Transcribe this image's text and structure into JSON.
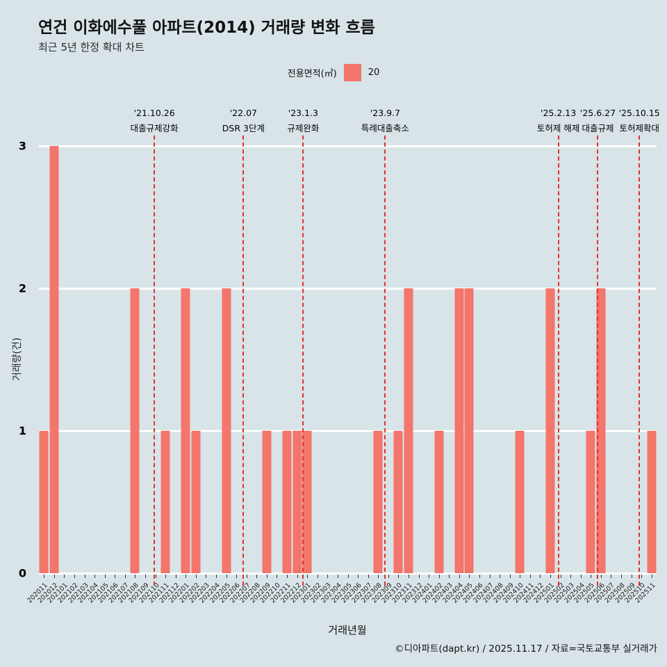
{
  "page": {
    "title": "연건 이화에수풀 아파트(2014) 거래량 변화 흐름",
    "subtitle": "최근 5년 한정 확대 차트",
    "footer": "©디아파트(dapt.kr) / 2025.11.17 / 자료=국토교통부 실거래가"
  },
  "legend": {
    "label": "전용면적(㎡)",
    "items": [
      {
        "name": "20",
        "color": "#f4756c"
      }
    ]
  },
  "colors": {
    "background": "#d8e4e8",
    "bar": "#f4756c",
    "gridline": "#ffffff",
    "annotation_line": "#e23227",
    "text": "#111111"
  },
  "chart_data": {
    "type": "bar",
    "title": "연건 이화에수풀 아파트(2014) 거래량 변화 흐름",
    "subtitle": "최근 5년 한정 확대 차트",
    "xlabel": "거래년월",
    "ylabel": "거래량(건)",
    "ylim": [
      0,
      3
    ],
    "yticks": [
      0,
      1,
      2,
      3
    ],
    "grid": "horizontal-white",
    "legend_position": "top-center",
    "legend_title": "전용면적(㎡)",
    "categories": [
      "202011",
      "202012",
      "202101",
      "202102",
      "202103",
      "202104",
      "202105",
      "202106",
      "202107",
      "202108",
      "202109",
      "202110",
      "202111",
      "202112",
      "202201",
      "202202",
      "202203",
      "202204",
      "202205",
      "202206",
      "202207",
      "202208",
      "202209",
      "202210",
      "202211",
      "202212",
      "202301",
      "202302",
      "202303",
      "202304",
      "202305",
      "202306",
      "202307",
      "202308",
      "202309",
      "202310",
      "202311",
      "202312",
      "202401",
      "202402",
      "202403",
      "202404",
      "202405",
      "202406",
      "202407",
      "202408",
      "202409",
      "202410",
      "202411",
      "202412",
      "202501",
      "202502",
      "202503",
      "202504",
      "202505",
      "202506",
      "202507",
      "202508",
      "202509",
      "202510",
      "202511"
    ],
    "series": [
      {
        "name": "20",
        "color": "#f4756c",
        "values": [
          1,
          3,
          0,
          0,
          0,
          0,
          0,
          0,
          0,
          2,
          0,
          0,
          1,
          0,
          2,
          1,
          0,
          0,
          2,
          0,
          0,
          0,
          1,
          0,
          1,
          1,
          1,
          0,
          0,
          0,
          0,
          0,
          0,
          1,
          0,
          1,
          2,
          0,
          0,
          1,
          0,
          2,
          2,
          0,
          0,
          0,
          0,
          1,
          0,
          0,
          2,
          0,
          0,
          0,
          1,
          2,
          0,
          0,
          0,
          0,
          1
        ]
      }
    ],
    "annotations": [
      {
        "date": "'21.10.26",
        "label": "대출규제강화",
        "x_index": 10.9
      },
      {
        "date": "'22.07",
        "label": "DSR 3단계",
        "x_index": 19.7
      },
      {
        "date": "'23.1.3",
        "label": "규제완화",
        "x_index": 25.6
      },
      {
        "date": "'23.9.7",
        "label": "특례대출축소",
        "x_index": 33.7
      },
      {
        "date": "'25.2.13",
        "label": "토허제 해제",
        "x_index": 50.8
      },
      {
        "date": "'25.6.27",
        "label": "대출규제",
        "x_index": 54.7
      },
      {
        "date": "'25.10.15",
        "label": "토허제확대",
        "x_index": 58.8
      }
    ]
  }
}
